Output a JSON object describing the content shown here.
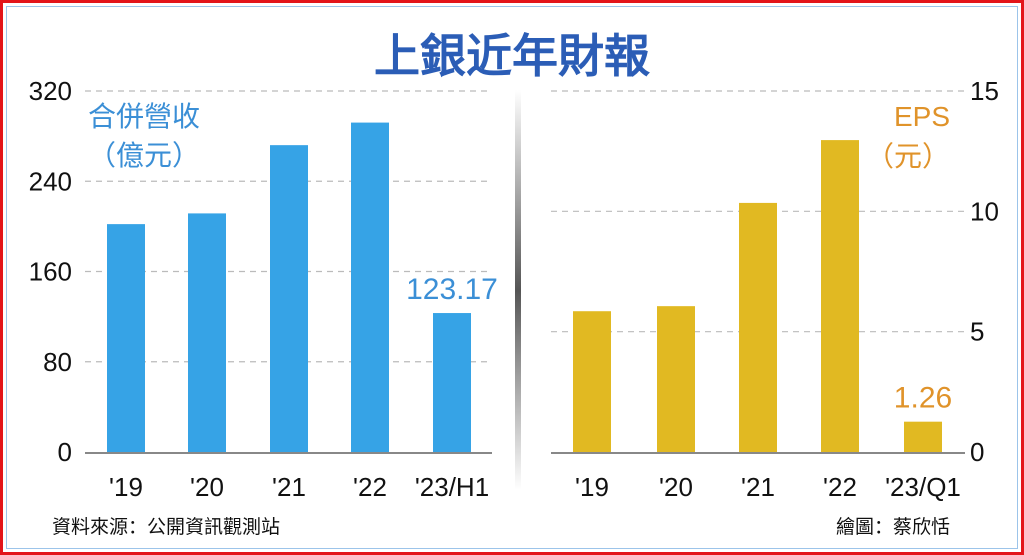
{
  "title": "上銀近年財報",
  "footer": {
    "source": "資料來源：公開資訊觀測站",
    "credit": "繪圖：蔡欣恬"
  },
  "colors": {
    "revenue": "#36a3e6",
    "eps": "#e1b922",
    "revenue_label": "#3b8fd6",
    "eps_label": "#e0932a",
    "title": "#2b5db6",
    "border": "#e3151a"
  },
  "chart_data": [
    {
      "type": "bar",
      "title": "",
      "series_label": [
        "合併營收",
        "（億元）"
      ],
      "categories": [
        "'19",
        "'20",
        "'21",
        "'22",
        "'23/H1"
      ],
      "values": [
        202,
        211.5,
        272,
        292,
        123.17
      ],
      "data_labels": {
        "4": "123.17"
      },
      "ylim": [
        0,
        320
      ],
      "yticks": [
        "0",
        "80",
        "160",
        "240",
        "320"
      ],
      "ytick_values": [
        0,
        80,
        160,
        240,
        320
      ],
      "y_axis_side": "left",
      "grid": true
    },
    {
      "type": "bar",
      "title": "",
      "series_label": [
        "EPS",
        "（元）"
      ],
      "categories": [
        "'19",
        "'20",
        "'21",
        "'22",
        "'23/Q1"
      ],
      "values": [
        5.85,
        6.06,
        10.35,
        12.96,
        1.26
      ],
      "data_labels": {
        "4": "1.26"
      },
      "ylim": [
        0,
        15
      ],
      "yticks": [
        "0",
        "5",
        "10",
        "15"
      ],
      "ytick_values": [
        0,
        5,
        10,
        15
      ],
      "y_axis_side": "right",
      "grid": true
    }
  ]
}
